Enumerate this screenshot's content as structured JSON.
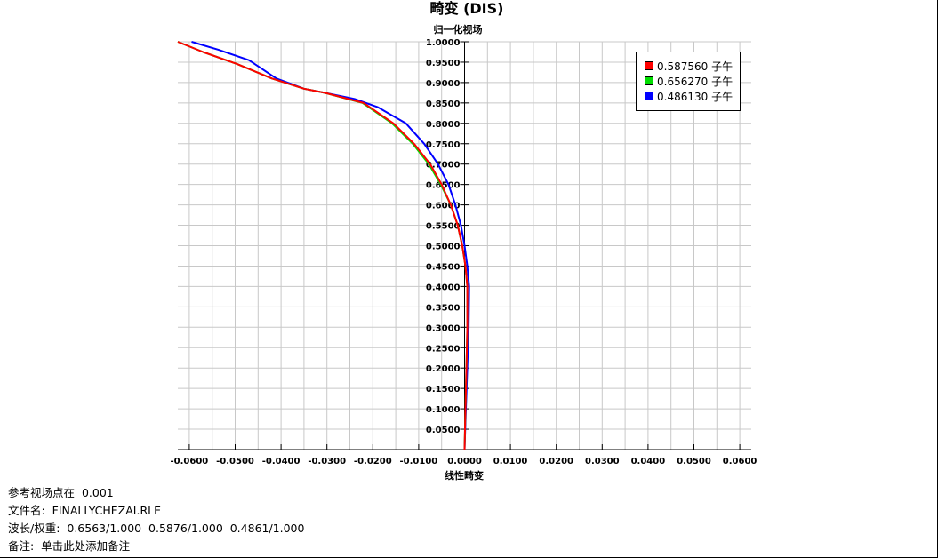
{
  "chart_data": {
    "type": "line",
    "title": "畸变 (DIS)",
    "ylabel": "归一化视场",
    "xlabel": "线性畸变",
    "xlim": [
      -0.0625,
      0.0625
    ],
    "ylim": [
      0,
      1.0
    ],
    "x_ticks": [
      "-0.0600",
      "-0.0500",
      "-0.0400",
      "-0.0300",
      "-0.0200",
      "-0.0100",
      "0.0000",
      "0.0100",
      "0.0200",
      "0.0300",
      "0.0400",
      "0.0500",
      "0.0600"
    ],
    "y_ticks": [
      "0.0500",
      "0.1000",
      "0.1500",
      "0.2000",
      "0.2500",
      "0.3000",
      "0.3500",
      "0.4000",
      "0.4500",
      "0.5000",
      "0.5500",
      "0.6000",
      "0.6500",
      "0.7000",
      "0.7500",
      "0.8000",
      "0.8500",
      "0.9000",
      "0.9500",
      "1.0000"
    ],
    "grid": true,
    "legend_position": "top-right",
    "series": [
      {
        "name": "0.587560 子午",
        "color": "#ff0000",
        "points": [
          [
            0,
            0
          ],
          [
            0.0002,
            0.1
          ],
          [
            0.0004,
            0.2
          ],
          [
            0.0006,
            0.3
          ],
          [
            0.0006,
            0.4
          ],
          [
            0.0002,
            0.45
          ],
          [
            -0.0005,
            0.5
          ],
          [
            -0.0015,
            0.55
          ],
          [
            -0.003,
            0.6
          ],
          [
            -0.005,
            0.65
          ],
          [
            -0.0075,
            0.7
          ],
          [
            -0.011,
            0.75
          ],
          [
            -0.0155,
            0.8
          ],
          [
            -0.022,
            0.85
          ],
          [
            -0.0305,
            0.875
          ],
          [
            -0.035,
            0.885
          ],
          [
            -0.042,
            0.91
          ],
          [
            -0.0495,
            0.945
          ],
          [
            -0.057,
            0.975
          ],
          [
            -0.0625,
            1.0
          ]
        ]
      },
      {
        "name": "0.656270 子午",
        "color": "#00dd00",
        "points": [
          [
            0,
            0
          ],
          [
            0.0002,
            0.1
          ],
          [
            0.0004,
            0.2
          ],
          [
            0.0006,
            0.3
          ],
          [
            0.0006,
            0.4
          ],
          [
            0.0002,
            0.45
          ],
          [
            -0.0005,
            0.5
          ],
          [
            -0.0015,
            0.55
          ],
          [
            -0.003,
            0.6
          ],
          [
            -0.0052,
            0.65
          ],
          [
            -0.0078,
            0.7
          ],
          [
            -0.0113,
            0.75
          ],
          [
            -0.0158,
            0.8
          ],
          [
            -0.0222,
            0.85
          ],
          [
            -0.0305,
            0.875
          ],
          [
            -0.035,
            0.885
          ],
          [
            -0.042,
            0.91
          ],
          [
            -0.0495,
            0.945
          ],
          [
            -0.057,
            0.975
          ],
          [
            -0.0625,
            1.0
          ]
        ]
      },
      {
        "name": "0.486130 子午",
        "color": "#0000ff",
        "points": [
          [
            0,
            0
          ],
          [
            0.0003,
            0.1
          ],
          [
            0.0006,
            0.2
          ],
          [
            0.0009,
            0.3
          ],
          [
            0.001,
            0.4
          ],
          [
            0.0006,
            0.45
          ],
          [
            0,
            0.5
          ],
          [
            -0.0008,
            0.55
          ],
          [
            -0.002,
            0.6
          ],
          [
            -0.0035,
            0.65
          ],
          [
            -0.0058,
            0.7
          ],
          [
            -0.0088,
            0.75
          ],
          [
            -0.0128,
            0.8
          ],
          [
            -0.019,
            0.84
          ],
          [
            -0.024,
            0.86
          ],
          [
            -0.0305,
            0.875
          ],
          [
            -0.035,
            0.885
          ],
          [
            -0.041,
            0.91
          ],
          [
            -0.047,
            0.955
          ],
          [
            -0.0535,
            0.98
          ],
          [
            -0.0595,
            1.0
          ]
        ]
      }
    ]
  },
  "notes": {
    "line1": "参考视场点在  0.001",
    "line2": "文件名:  FINALLYCHEZAI.RLE",
    "line3": "波长/权重:  0.6563/1.000  0.5876/1.000  0.4861/1.000",
    "line4": "备注:  单击此处添加备注"
  }
}
